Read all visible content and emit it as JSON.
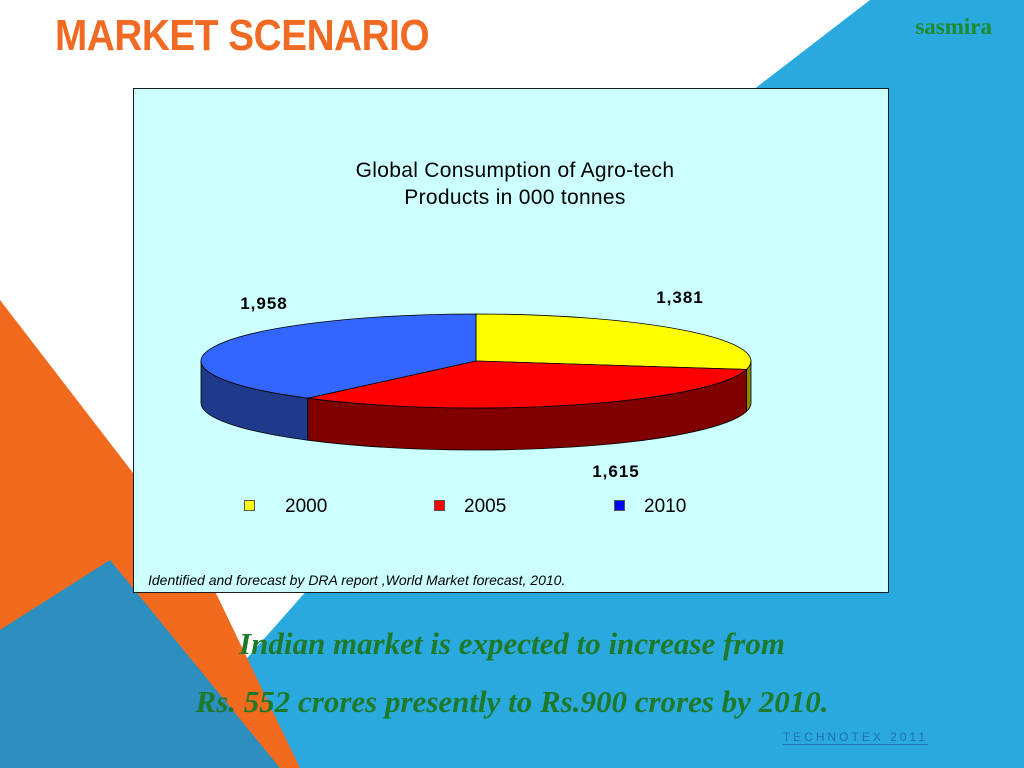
{
  "slide": {
    "title": "MARKET SCENARIO",
    "brand": "sasmira",
    "caption_line1": "Indian market is expected to increase from",
    "caption_line2": "Rs. 552 crores presently to Rs.900 crores by 2010.",
    "footer": "TECHNOTEX 2011",
    "source_note": "Identified and forecast by DRA report ,World Market forecast, 2010."
  },
  "colors": {
    "title": "#F06A23",
    "brand": "#1E8A2E",
    "caption": "#1E7A2A",
    "footer": "#1F6FB2",
    "orange": "#F26A1E",
    "blue": "#2AA9DF",
    "chart_bg": "#CCFFFF"
  },
  "chart_data": {
    "type": "pie",
    "title_line1": "Global Consumption of Agro-tech",
    "title_line2": "Products in 000 tonnes",
    "categories": [
      "2000",
      "2005",
      "2010"
    ],
    "values": [
      1381,
      1615,
      1958
    ],
    "value_labels": [
      "1,381",
      "1,615",
      "1,958"
    ],
    "colors": [
      "#FFFF00",
      "#FF0000",
      "#3366FF"
    ],
    "side_colors": [
      "#8A8A00",
      "#800000",
      "#1F3A8A"
    ],
    "legend_colors": [
      "#FFFF00",
      "#FF0000",
      "#0000FF"
    ],
    "legend_position": "bottom",
    "style": "3d"
  }
}
